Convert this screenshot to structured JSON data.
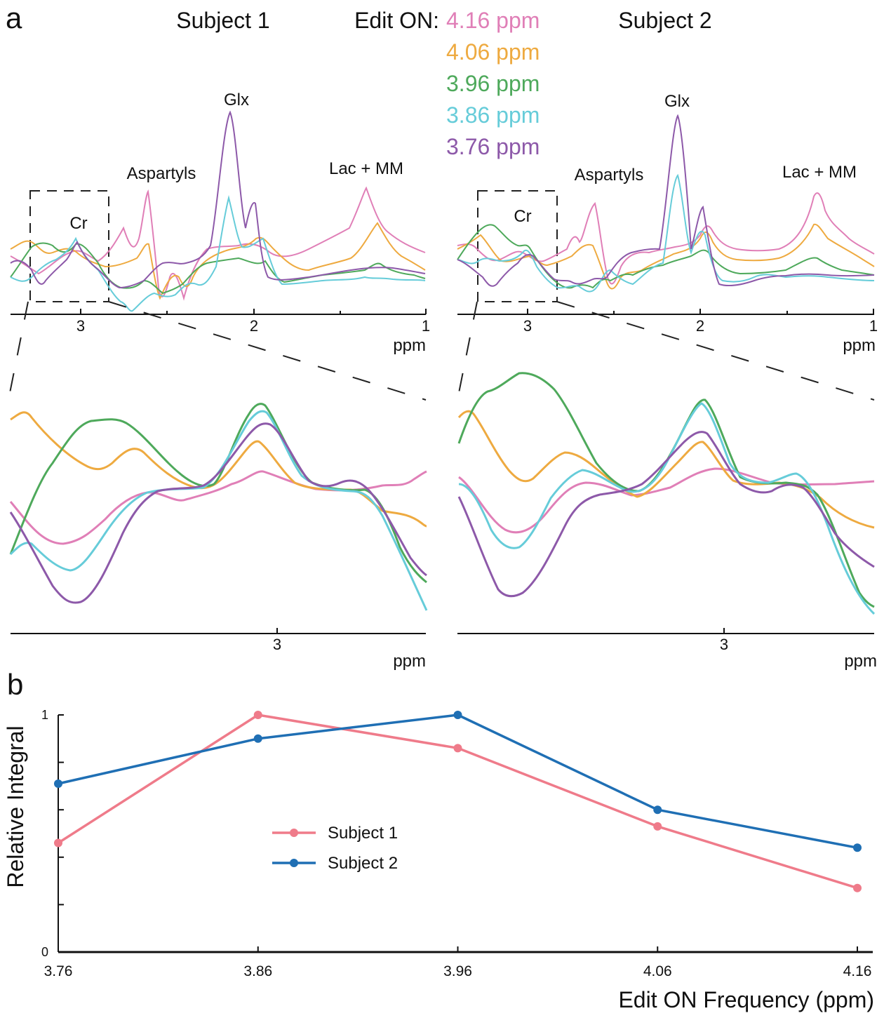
{
  "panel_a": {
    "label": "a",
    "legend_title": "Edit ON:",
    "legend": [
      {
        "label": "4.16 ppm",
        "color": "#e07fb7"
      },
      {
        "label": "4.06 ppm",
        "color": "#eeaa40"
      },
      {
        "label": "3.96 ppm",
        "color": "#4ea95b"
      },
      {
        "label": "3.86 ppm",
        "color": "#66ccd9"
      },
      {
        "label": "3.76 ppm",
        "color": "#8d59a9"
      }
    ],
    "subject1": {
      "title": "Subject 1",
      "peaks": {
        "glx": "Glx",
        "aspartyls": "Aspartyls",
        "lac_mm": "Lac + MM",
        "cr": "Cr"
      },
      "ticks": [
        "3",
        "2",
        "1"
      ],
      "xlabel": "ppm",
      "zoom_tick": "3",
      "zoom_xlabel": "ppm"
    },
    "subject2": {
      "title": "Subject 2",
      "peaks": {
        "glx": "Glx",
        "aspartyls": "Aspartyls",
        "lac_mm": "Lac + MM",
        "cr": "Cr"
      },
      "ticks": [
        "3",
        "2",
        "1"
      ],
      "xlabel": "ppm",
      "zoom_tick": "3",
      "zoom_xlabel": "ppm"
    }
  },
  "panel_b": {
    "label": "b"
  },
  "chart_data": {
    "type": "line",
    "title": "",
    "xlabel": "Edit ON Frequency (ppm)",
    "ylabel": "Relative Integral",
    "categories": [
      "3.76",
      "3.86",
      "3.96",
      "4.06",
      "4.16"
    ],
    "ylim": [
      0,
      1
    ],
    "y_ticks": [
      "0",
      "1"
    ],
    "legend_position": "center-left",
    "series": [
      {
        "name": "Subject 1",
        "color": "#ef7b8a",
        "values": [
          0.46,
          1.0,
          0.86,
          0.53,
          0.27
        ]
      },
      {
        "name": "Subject 2",
        "color": "#1f6fb4",
        "values": [
          0.71,
          0.9,
          1.0,
          0.6,
          0.44
        ]
      }
    ]
  }
}
